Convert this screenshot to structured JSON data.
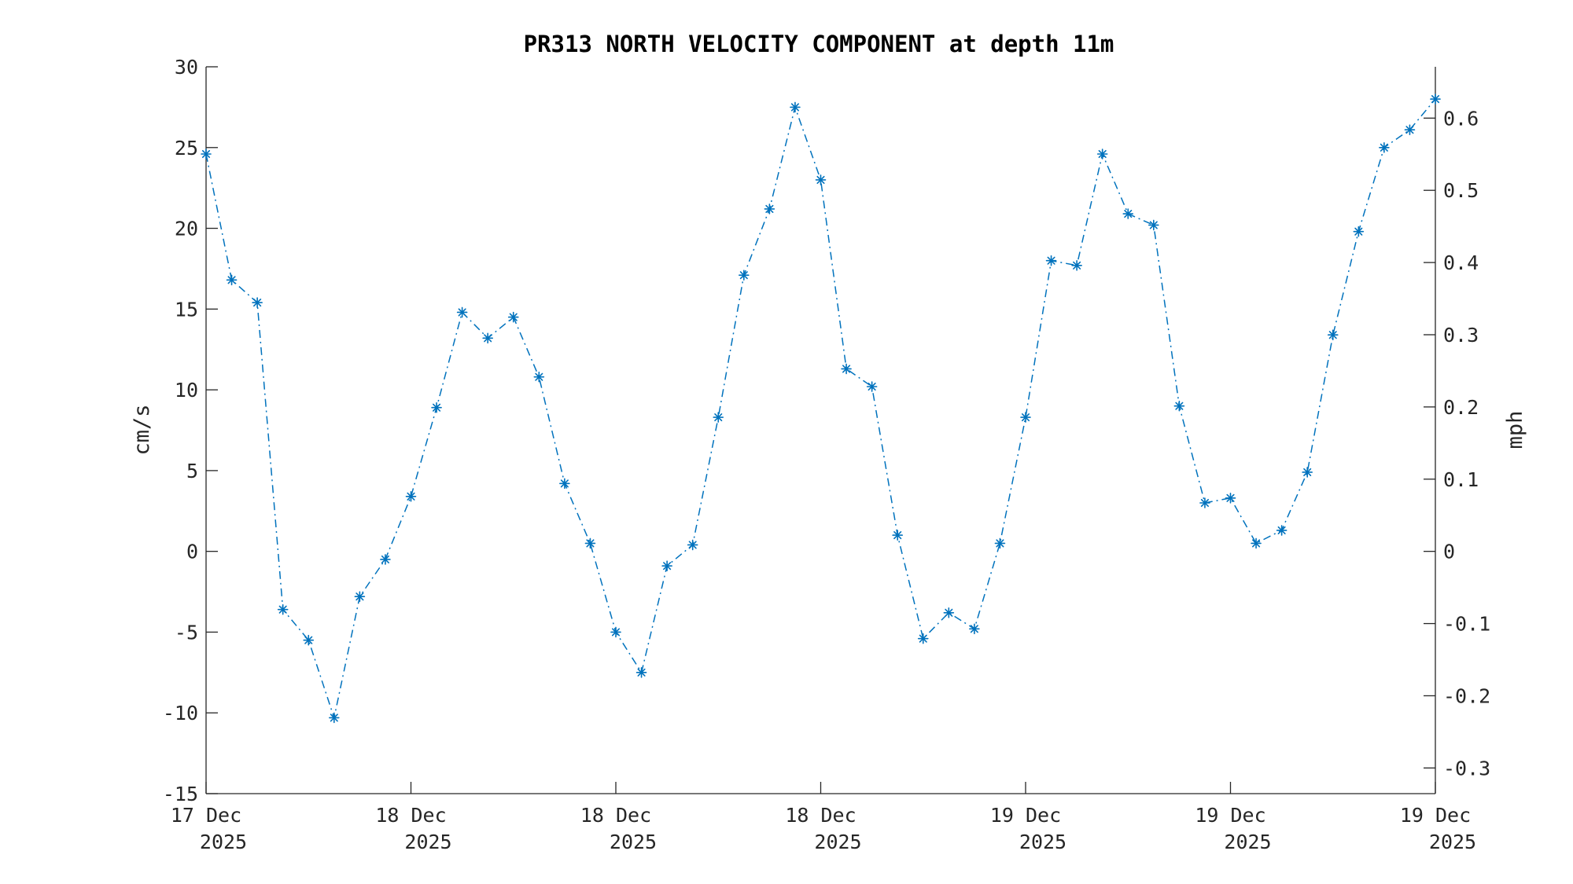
{
  "chart_data": {
    "type": "line",
    "title": "PR313 NORTH VELOCITY COMPONENT at depth 11m",
    "ylabel": "cm/s",
    "y2label": "mph",
    "ylim": [
      -15,
      30
    ],
    "yticks": [
      -15,
      -10,
      -5,
      0,
      5,
      10,
      15,
      20,
      25,
      30
    ],
    "y2ticks": [
      "-0.3",
      "-0.2",
      "-0.1",
      "0",
      "0.1",
      "0.2",
      "0.3",
      "0.4",
      "0.5",
      "0.6"
    ],
    "y2_per_y": 0.0223694,
    "xticks": [
      {
        "line1": "17 Dec",
        "line2": "2025"
      },
      {
        "line1": "18 Dec",
        "line2": "2025"
      },
      {
        "line1": "18 Dec",
        "line2": "2025"
      },
      {
        "line1": "18 Dec",
        "line2": "2025"
      },
      {
        "line1": "19 Dec",
        "line2": "2025"
      },
      {
        "line1": "19 Dec",
        "line2": "2025"
      },
      {
        "line1": "19 Dec",
        "line2": "2025"
      }
    ],
    "grid": false,
    "series": [
      {
        "color": "#0072BD",
        "marker": "asterisk",
        "line_style": "dash-dot",
        "values": [
          24.6,
          16.8,
          15.4,
          -3.6,
          -5.5,
          -10.3,
          -2.8,
          -0.5,
          3.4,
          8.9,
          14.8,
          13.2,
          14.5,
          10.8,
          4.2,
          0.5,
          -5.0,
          -7.5,
          -0.9,
          0.4,
          8.3,
          17.1,
          21.2,
          27.5,
          23.0,
          11.3,
          10.2,
          1.0,
          -5.4,
          -3.8,
          -4.8,
          0.5,
          8.3,
          18.0,
          17.7,
          24.6,
          20.9,
          20.2,
          9.0,
          3.0,
          3.3,
          0.5,
          1.3,
          4.9,
          13.4,
          19.8,
          25.0,
          26.1,
          28.0
        ]
      }
    ]
  }
}
